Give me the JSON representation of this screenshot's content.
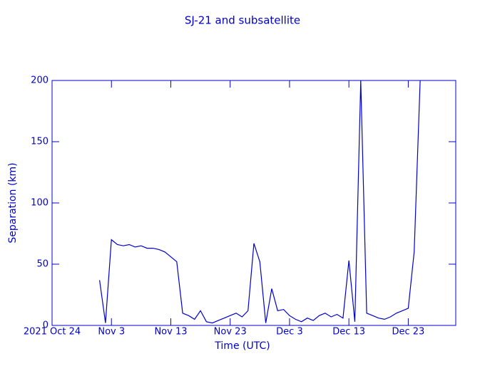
{
  "chart_data": {
    "type": "line",
    "title": "SJ-21 and subsatellite",
    "xlabel": "Time (UTC)",
    "ylabel": "Separation (km)",
    "color": "#0000cc",
    "x": [
      "2021-11-01",
      "2021-11-02",
      "2021-11-03",
      "2021-11-04",
      "2021-11-05",
      "2021-11-06",
      "2021-11-07",
      "2021-11-08",
      "2021-11-09",
      "2021-11-10",
      "2021-11-11",
      "2021-11-12",
      "2021-11-13",
      "2021-11-14",
      "2021-11-15",
      "2021-11-16",
      "2021-11-17",
      "2021-11-18",
      "2021-11-19",
      "2021-11-20",
      "2021-11-21",
      "2021-11-22",
      "2021-11-23",
      "2021-11-24",
      "2021-11-25",
      "2021-11-26",
      "2021-11-27",
      "2021-11-28",
      "2021-11-29",
      "2021-11-30",
      "2021-12-01",
      "2021-12-02",
      "2021-12-03",
      "2021-12-04",
      "2021-12-05",
      "2021-12-06",
      "2021-12-07",
      "2021-12-08",
      "2021-12-09",
      "2021-12-10",
      "2021-12-11",
      "2021-12-12",
      "2021-12-13",
      "2021-12-14",
      "2021-12-15",
      "2021-12-16",
      "2021-12-17",
      "2021-12-18",
      "2021-12-19",
      "2021-12-20",
      "2021-12-21",
      "2021-12-22",
      "2021-12-23",
      "2021-12-24",
      "2021-12-25"
    ],
    "values": [
      37,
      2,
      70,
      66,
      65,
      66,
      64,
      65,
      63,
      63,
      62,
      60,
      56,
      52,
      10,
      8,
      5,
      12,
      3,
      2,
      4,
      6,
      8,
      10,
      7,
      12,
      67,
      52,
      2,
      30,
      12,
      13,
      8,
      5,
      3,
      6,
      4,
      8,
      10,
      7,
      9,
      6,
      53,
      3,
      200,
      10,
      8,
      6,
      5,
      7,
      10,
      12,
      14,
      60,
      200
    ],
    "xlim": [
      "2021-10-24",
      "2021-12-31"
    ],
    "xticks": [
      {
        "value": "2021-10-24",
        "label": "2021 Oct 24"
      },
      {
        "value": "2021-11-03",
        "label": "Nov 3"
      },
      {
        "value": "2021-11-13",
        "label": "Nov 13"
      },
      {
        "value": "2021-11-23",
        "label": "Nov 23"
      },
      {
        "value": "2021-12-03",
        "label": "Dec 3"
      },
      {
        "value": "2021-12-13",
        "label": "Dec 13"
      },
      {
        "value": "2021-12-23",
        "label": "Dec 23"
      }
    ],
    "ylim": [
      0,
      200
    ],
    "yticks": [
      0,
      50,
      100,
      150,
      200
    ]
  }
}
